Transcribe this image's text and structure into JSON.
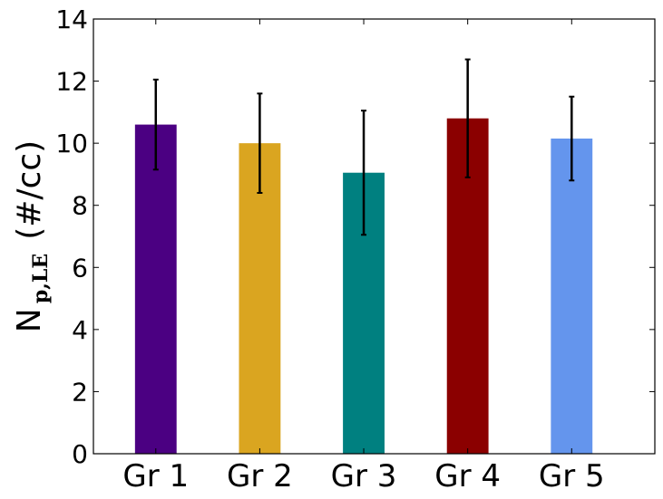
{
  "chart_data": {
    "type": "bar",
    "title": "",
    "xlabel": "",
    "ylabel": {
      "main": "N",
      "subscript": "p,LE",
      "units": "(#/cc)"
    },
    "ylim": [
      0,
      14
    ],
    "yticks": [
      0,
      2,
      4,
      6,
      8,
      10,
      12,
      14
    ],
    "categories": [
      "Gr 1",
      "Gr 2",
      "Gr 3",
      "Gr 4",
      "Gr 5"
    ],
    "values": [
      10.6,
      10.0,
      9.05,
      10.8,
      10.15
    ],
    "errors": [
      1.45,
      1.6,
      2.0,
      1.9,
      1.35
    ],
    "colors": [
      "#4b0082",
      "#daa520",
      "#008080",
      "#8b0000",
      "#6495ed"
    ],
    "grid": false,
    "legend": "none"
  }
}
